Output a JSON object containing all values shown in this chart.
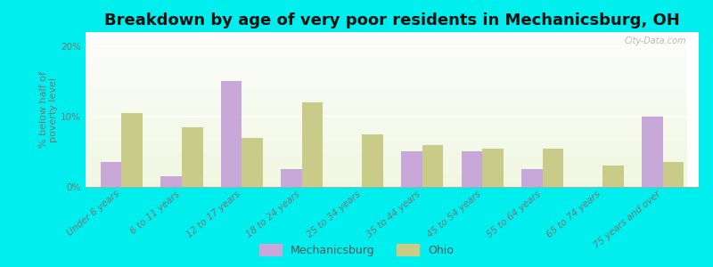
{
  "title": "Breakdown by age of very poor residents in Mechanicsburg, OH",
  "ylabel": "% below half of\npoverty level",
  "categories": [
    "Under 6 years",
    "6 to 11 years",
    "12 to 17 years",
    "18 to 24 years",
    "25 to 34 years",
    "35 to 44 years",
    "45 to 54 years",
    "55 to 64 years",
    "65 to 74 years",
    "75 years and over"
  ],
  "mechanicsburg": [
    3.5,
    1.5,
    15.0,
    2.5,
    0.0,
    5.0,
    5.0,
    2.5,
    0.0,
    10.0
  ],
  "ohio": [
    10.5,
    8.5,
    7.0,
    12.0,
    7.5,
    6.0,
    5.5,
    5.5,
    3.0,
    3.5
  ],
  "mechanicsburg_color": "#c8a8d8",
  "ohio_color": "#c8cc88",
  "bg_outer": "#00eeee",
  "ylim": [
    0,
    22
  ],
  "yticks": [
    0,
    10,
    20
  ],
  "ytick_labels": [
    "0%",
    "10%",
    "20%"
  ],
  "bar_width": 0.35,
  "legend_mechanicsburg": "Mechanicsburg",
  "legend_ohio": "Ohio",
  "title_fontsize": 13,
  "axis_label_fontsize": 8,
  "tick_label_fontsize": 7.5
}
